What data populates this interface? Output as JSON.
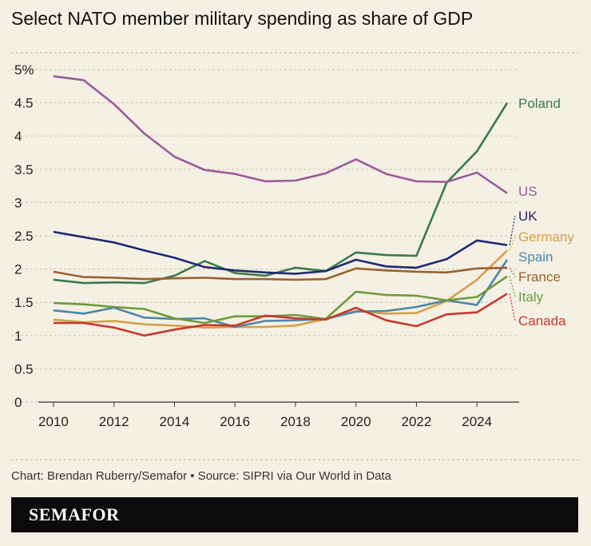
{
  "chart_data": {
    "type": "line",
    "title": "Select NATO member military spending as share of GDP",
    "x": [
      2010,
      2011,
      2012,
      2013,
      2014,
      2015,
      2016,
      2017,
      2018,
      2019,
      2020,
      2021,
      2022,
      2023,
      2024,
      2025
    ],
    "xlim": [
      2009.5,
      2025.5
    ],
    "xticks": [
      2010,
      2012,
      2014,
      2016,
      2018,
      2020,
      2022,
      2024
    ],
    "ylim": [
      0,
      5.15
    ],
    "yticks": [
      0,
      0.5,
      1,
      1.5,
      2,
      2.5,
      3,
      3.5,
      4,
      4.5,
      {
        "value": 5,
        "label": "5%"
      }
    ],
    "grid": true,
    "series": [
      {
        "name": "Poland",
        "color": "#3c7a4c",
        "values": [
          1.84,
          1.79,
          1.8,
          1.79,
          1.9,
          2.12,
          1.94,
          1.9,
          2.02,
          1.97,
          2.25,
          2.21,
          2.2,
          3.3,
          3.77,
          4.5
        ]
      },
      {
        "name": "US",
        "color": "#9a5c9c",
        "values": [
          4.9,
          4.84,
          4.48,
          4.04,
          3.69,
          3.49,
          3.43,
          3.32,
          3.33,
          3.44,
          3.65,
          3.43,
          3.32,
          3.31,
          3.45,
          3.14
        ]
      },
      {
        "name": "UK",
        "color": "#1f2a6e",
        "values": [
          2.56,
          2.48,
          2.4,
          2.28,
          2.17,
          2.03,
          1.98,
          1.95,
          1.93,
          1.97,
          2.14,
          2.04,
          2.02,
          2.15,
          2.43,
          2.36
        ]
      },
      {
        "name": "Germany",
        "color": "#d6a04c",
        "values": [
          1.24,
          1.2,
          1.22,
          1.17,
          1.15,
          1.12,
          1.13,
          1.13,
          1.15,
          1.25,
          1.37,
          1.33,
          1.34,
          1.52,
          1.84,
          2.28
        ]
      },
      {
        "name": "Spain",
        "color": "#4a88a6",
        "values": [
          1.38,
          1.33,
          1.42,
          1.27,
          1.25,
          1.26,
          1.13,
          1.22,
          1.23,
          1.25,
          1.36,
          1.37,
          1.43,
          1.53,
          1.46,
          2.14
        ]
      },
      {
        "name": "France",
        "color": "#9a6232",
        "values": [
          1.96,
          1.88,
          1.87,
          1.85,
          1.86,
          1.87,
          1.85,
          1.85,
          1.84,
          1.85,
          2.01,
          1.98,
          1.96,
          1.95,
          2.01,
          2.02
        ]
      },
      {
        "name": "Italy",
        "color": "#6f9a3c",
        "values": [
          1.49,
          1.47,
          1.43,
          1.4,
          1.26,
          1.19,
          1.29,
          1.29,
          1.31,
          1.25,
          1.66,
          1.61,
          1.6,
          1.53,
          1.58,
          1.89
        ]
      },
      {
        "name": "Canada",
        "color": "#c8382c",
        "values": [
          1.19,
          1.19,
          1.12,
          1.0,
          1.09,
          1.16,
          1.15,
          1.3,
          1.26,
          1.24,
          1.42,
          1.23,
          1.14,
          1.32,
          1.35,
          1.63
        ]
      }
    ]
  },
  "source": "Chart: Brendan Ruberry/Semafor • Source: SIPRI via Our World in Data",
  "brand": "SEMAFOR"
}
